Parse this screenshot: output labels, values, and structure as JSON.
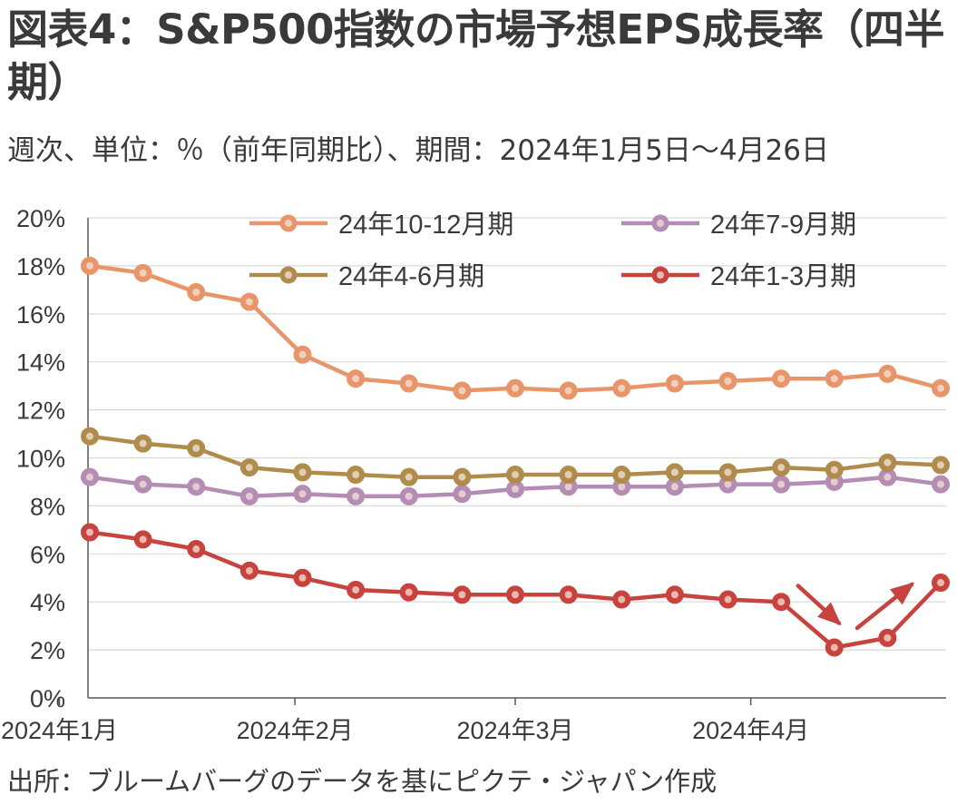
{
  "title": "図表4：S&P500指数の市場予想EPS成長率（四半期）",
  "subtitle": "週次、単位：％（前年同期比）、期間：2024年1月5日～4月26日",
  "source": "出所：ブルームバーグのデータを基にピクテ・ジャパン作成",
  "colors": {
    "q4": "#e8956a",
    "q3": "#b48cb4",
    "q2": "#b08c4c",
    "q1": "#c8423e",
    "grid": "#d9d9d9",
    "axis": "#595959",
    "arrow": "#c8423e"
  },
  "chart_data": {
    "type": "line",
    "x": [
      "2024-01-05",
      "2024-01-12",
      "2024-01-19",
      "2024-01-26",
      "2024-02-02",
      "2024-02-09",
      "2024-02-16",
      "2024-02-23",
      "2024-03-01",
      "2024-03-08",
      "2024-03-15",
      "2024-03-22",
      "2024-03-29",
      "2024-04-05",
      "2024-04-12",
      "2024-04-19",
      "2024-04-26"
    ],
    "x_tick_labels": [
      {
        "label": "2024年1月",
        "date": "2024-01-01"
      },
      {
        "label": "2024年2月",
        "date": "2024-02-01"
      },
      {
        "label": "2024年3月",
        "date": "2024-03-01"
      },
      {
        "label": "2024年4月",
        "date": "2024-04-01"
      }
    ],
    "ylim": [
      0,
      20
    ],
    "y_ticks": [
      0,
      2,
      4,
      6,
      8,
      10,
      12,
      14,
      16,
      18,
      20
    ],
    "y_tick_labels": [
      "0%",
      "2%",
      "4%",
      "6%",
      "8%",
      "10%",
      "12%",
      "14%",
      "16%",
      "18%",
      "20%"
    ],
    "grid": true,
    "legend_position": "top",
    "series": [
      {
        "name": "24年10-12月期",
        "key": "q4",
        "values": [
          18.0,
          17.7,
          16.9,
          16.5,
          14.3,
          13.3,
          13.1,
          12.8,
          12.9,
          12.8,
          12.9,
          13.1,
          13.2,
          13.3,
          13.3,
          13.5,
          12.9
        ]
      },
      {
        "name": "24年7-9月期",
        "key": "q3",
        "values": [
          9.2,
          8.9,
          8.8,
          8.4,
          8.5,
          8.4,
          8.4,
          8.5,
          8.7,
          8.8,
          8.8,
          8.8,
          8.9,
          8.9,
          9.0,
          9.2,
          8.9
        ]
      },
      {
        "name": "24年4-6月期",
        "key": "q2",
        "values": [
          10.9,
          10.6,
          10.4,
          9.6,
          9.4,
          9.3,
          9.2,
          9.2,
          9.3,
          9.3,
          9.3,
          9.4,
          9.4,
          9.6,
          9.5,
          9.8,
          9.7
        ]
      },
      {
        "name": "24年1-3月期",
        "key": "q1",
        "values": [
          6.9,
          6.6,
          6.2,
          5.3,
          5.0,
          4.5,
          4.4,
          4.3,
          4.3,
          4.3,
          4.1,
          4.3,
          4.1,
          4.0,
          2.1,
          2.5,
          4.8
        ]
      }
    ],
    "annotations": [
      {
        "type": "arrow",
        "direction": "down",
        "near": "2024-04-12"
      },
      {
        "type": "arrow",
        "direction": "up",
        "near": "2024-04-26"
      }
    ]
  }
}
